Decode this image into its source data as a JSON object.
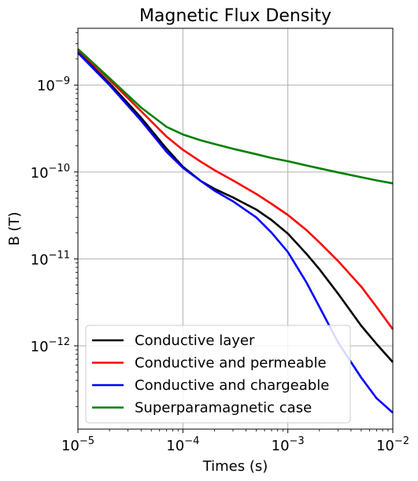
{
  "chart_data": {
    "type": "line",
    "title": "Magnetic Flux Density",
    "xlabel": "Times (s)",
    "ylabel": "B (T)",
    "x_scale": "log",
    "y_scale": "log",
    "xlim": [
      1e-05,
      0.01
    ],
    "ylim": [
      1.1e-13,
      4.5e-09
    ],
    "grid": true,
    "legend_position": "lower-left",
    "x_ticks": [
      {
        "value": 1e-05,
        "base": "10",
        "exp": "−5"
      },
      {
        "value": 0.0001,
        "base": "10",
        "exp": "−4"
      },
      {
        "value": 0.001,
        "base": "10",
        "exp": "−3"
      },
      {
        "value": 0.01,
        "base": "10",
        "exp": "−2"
      }
    ],
    "y_ticks": [
      {
        "value": 1e-12,
        "base": "10",
        "exp": "−12"
      },
      {
        "value": 1e-11,
        "base": "10",
        "exp": "−11"
      },
      {
        "value": 1e-10,
        "base": "10",
        "exp": "−10"
      },
      {
        "value": 1e-09,
        "base": "10",
        "exp": "−9"
      }
    ],
    "series": [
      {
        "name": "Conductive layer",
        "color": "#000000",
        "x": [
          1e-05,
          2e-05,
          4e-05,
          7e-05,
          0.0001,
          0.00015,
          0.0002,
          0.0003,
          0.0005,
          0.0007,
          0.001,
          0.0015,
          0.002,
          0.003,
          0.005,
          0.007,
          0.01
        ],
        "y": [
          2.4e-09,
          1.05e-09,
          4.2e-10,
          1.85e-10,
          1.15e-10,
          7.8e-11,
          6.4e-11,
          5.1e-11,
          3.7e-11,
          2.8e-11,
          1.95e-11,
          1.15e-11,
          7.6e-12,
          4e-12,
          1.7e-12,
          1.05e-12,
          6.5e-13
        ]
      },
      {
        "name": "Conductive and permeable",
        "color": "#ff0000",
        "x": [
          1e-05,
          2e-05,
          4e-05,
          7e-05,
          0.0001,
          0.00015,
          0.0002,
          0.0003,
          0.0005,
          0.0007,
          0.001,
          0.0015,
          0.002,
          0.003,
          0.005,
          0.007,
          0.01
        ],
        "y": [
          2.55e-09,
          1.15e-09,
          5e-10,
          2.55e-10,
          1.8e-10,
          1.3e-10,
          1.05e-10,
          8e-11,
          5.6e-11,
          4.3e-11,
          3.2e-11,
          2.15e-11,
          1.55e-11,
          9.5e-12,
          4.8e-12,
          2.8e-12,
          1.55e-12
        ]
      },
      {
        "name": "Conductive and chargeable",
        "color": "#0000ff",
        "x": [
          1e-05,
          2e-05,
          4e-05,
          7e-05,
          0.0001,
          0.00015,
          0.0002,
          0.0003,
          0.0005,
          0.0007,
          0.001,
          0.0015,
          0.002,
          0.003,
          0.005,
          0.007,
          0.01
        ],
        "y": [
          2.35e-09,
          1e-09,
          3.9e-10,
          1.7e-10,
          1.12e-10,
          7.8e-11,
          6.1e-11,
          4.6e-11,
          3e-11,
          2e-11,
          1.2e-11,
          5.4e-12,
          2.8e-12,
          1.1e-12,
          4.3e-13,
          2.5e-13,
          1.7e-13
        ]
      },
      {
        "name": "Superparamagnetic case",
        "color": "#008000",
        "x": [
          1e-05,
          2e-05,
          4e-05,
          7e-05,
          0.0001,
          0.00015,
          0.0002,
          0.0003,
          0.0005,
          0.0007,
          0.001,
          0.0015,
          0.002,
          0.003,
          0.005,
          0.007,
          0.01
        ],
        "y": [
          2.6e-09,
          1.2e-09,
          5.5e-10,
          3.3e-10,
          2.7e-10,
          2.3e-10,
          2.1e-10,
          1.85e-10,
          1.6e-10,
          1.45e-10,
          1.33e-10,
          1.19e-10,
          1.1e-10,
          9.9e-11,
          8.7e-11,
          8e-11,
          7.4e-11
        ]
      }
    ]
  }
}
